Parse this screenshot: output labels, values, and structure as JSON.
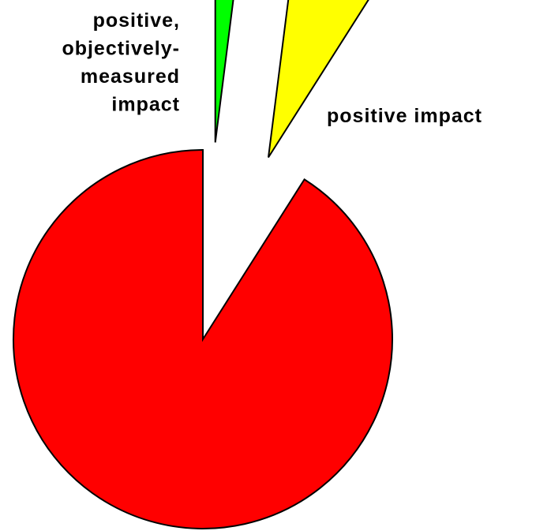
{
  "chart_data": {
    "type": "pie",
    "title": "",
    "slices": [
      {
        "label": "positive, objectively-measured impact",
        "label_lines": [
          "positive,",
          "objectively-",
          "measured",
          "impact"
        ],
        "value": 2,
        "color": "#00ff00",
        "exploded": true
      },
      {
        "label": "positive impact",
        "label_lines": [
          "positive impact"
        ],
        "value": 7,
        "color": "#ffff00",
        "exploded": true
      },
      {
        "label": "",
        "label_lines": [],
        "value": 91,
        "color": "#ff0000",
        "exploded": false
      }
    ],
    "legend": "none",
    "start_angle_deg": 0,
    "direction": "clockwise"
  }
}
